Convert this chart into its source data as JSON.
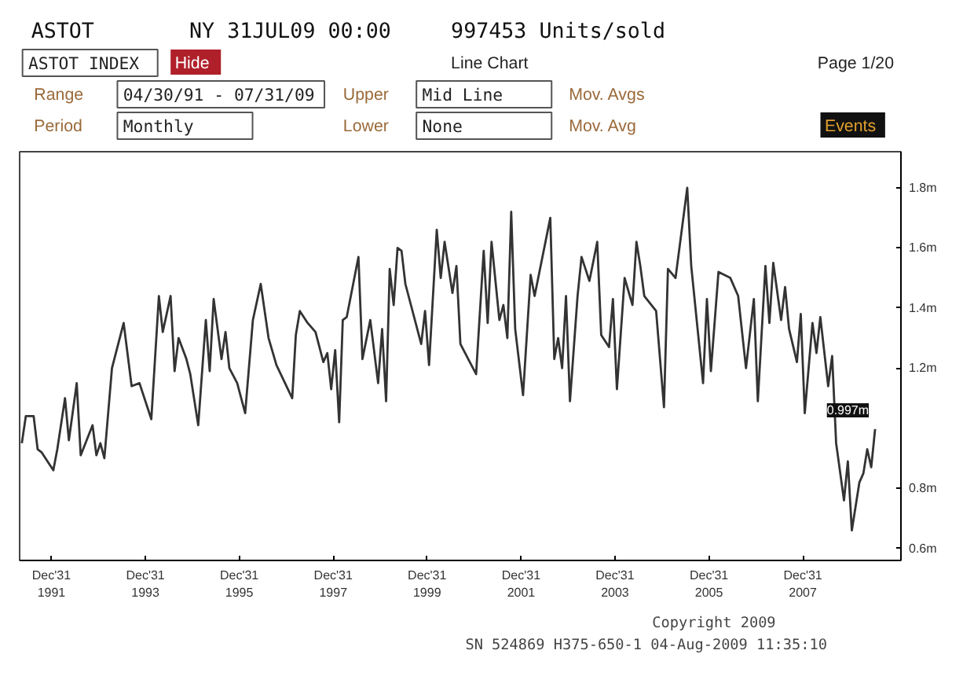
{
  "chart_data": {
    "type": "line",
    "x": [
      "1991-05",
      "1991-06",
      "1991-08",
      "1991-09",
      "1991-10",
      "1992-01",
      "1992-02",
      "1992-04",
      "1992-05",
      "1992-07",
      "1992-08",
      "1992-11",
      "1992-12",
      "1993-01",
      "1993-02",
      "1993-04",
      "1993-07",
      "1993-09",
      "1993-11",
      "1994-02",
      "1994-04",
      "1994-05",
      "1994-07",
      "1994-08",
      "1994-09",
      "1994-11",
      "1994-12",
      "1995-02",
      "1995-04",
      "1995-05",
      "1995-06",
      "1995-08",
      "1995-09",
      "1995-10",
      "1995-12",
      "1996-02",
      "1996-04",
      "1996-06",
      "1996-08",
      "1996-10",
      "1997-02",
      "1997-03",
      "1997-04",
      "1997-06",
      "1997-08",
      "1997-10",
      "1997-11",
      "1997-12",
      "1998-01",
      "1998-02",
      "1998-03",
      "1998-04",
      "1998-07",
      "1998-08",
      "1998-10",
      "1998-12",
      "1999-01",
      "1999-02",
      "1999-03",
      "1999-04",
      "1999-05",
      "1999-06",
      "1999-07",
      "1999-11",
      "1999-12",
      "2000-01",
      "2000-03",
      "2000-04",
      "2000-05",
      "2000-07",
      "2000-08",
      "2000-09",
      "2000-11",
      "2001-01",
      "2001-03",
      "2001-04",
      "2001-05",
      "2001-07",
      "2001-08",
      "2001-09",
      "2001-10",
      "2001-11",
      "2002-01",
      "2002-03",
      "2002-04",
      "2002-08",
      "2002-09",
      "2002-10",
      "2002-11",
      "2002-12",
      "2003-01",
      "2003-03",
      "2003-04",
      "2003-06",
      "2003-08",
      "2003-09",
      "2003-11",
      "2003-12",
      "2004-01",
      "2004-03",
      "2004-05",
      "2004-06",
      "2004-07",
      "2004-08",
      "2004-11",
      "2005-01",
      "2005-02",
      "2005-04",
      "2005-07",
      "2005-08",
      "2005-11",
      "2005-12",
      "2006-01",
      "2006-03",
      "2006-06",
      "2006-08",
      "2006-10",
      "2006-12",
      "2007-01",
      "2007-03",
      "2007-04",
      "2007-05",
      "2007-07",
      "2007-08",
      "2007-09",
      "2007-11",
      "2007-12",
      "2008-01",
      "2008-03",
      "2008-04",
      "2008-05",
      "2008-07",
      "2008-08",
      "2008-09",
      "2008-11",
      "2008-12",
      "2009-01",
      "2009-03",
      "2009-04",
      "2009-05",
      "2009-06",
      "2009-07"
    ],
    "series": [
      {
        "color": "#333333",
        "values": [
          0.95,
          1.04,
          1.04,
          0.93,
          0.92,
          0.86,
          0.93,
          1.1,
          0.96,
          1.15,
          0.91,
          1.01,
          0.91,
          0.95,
          0.9,
          1.2,
          1.35,
          1.14,
          1.15,
          1.03,
          1.44,
          1.32,
          1.44,
          1.19,
          1.3,
          1.23,
          1.18,
          1.01,
          1.36,
          1.19,
          1.43,
          1.23,
          1.32,
          1.2,
          1.15,
          1.05,
          1.36,
          1.48,
          1.3,
          1.21,
          1.1,
          1.31,
          1.39,
          1.35,
          1.32,
          1.22,
          1.25,
          1.13,
          1.26,
          1.02,
          1.36,
          1.37,
          1.57,
          1.23,
          1.36,
          1.15,
          1.33,
          1.09,
          1.53,
          1.41,
          1.6,
          1.59,
          1.48,
          1.28,
          1.39,
          1.21,
          1.66,
          1.5,
          1.62,
          1.45,
          1.54,
          1.28,
          1.23,
          1.18,
          1.59,
          1.35,
          1.62,
          1.36,
          1.41,
          1.3,
          1.72,
          1.33,
          1.11,
          1.51,
          1.44,
          1.7,
          1.23,
          1.3,
          1.2,
          1.44,
          1.09,
          1.44,
          1.57,
          1.49,
          1.62,
          1.31,
          1.27,
          1.43,
          1.13,
          1.5,
          1.41,
          1.62,
          1.54,
          1.44,
          1.39,
          1.07,
          1.53,
          1.5,
          1.8,
          1.54,
          1.15,
          1.43,
          1.19,
          1.52,
          1.5,
          1.44,
          1.2,
          1.43,
          1.09,
          1.54,
          1.35,
          1.55,
          1.36,
          1.47,
          1.33,
          1.22,
          1.38,
          1.05,
          1.35,
          1.25,
          1.37,
          1.14,
          1.24,
          0.95,
          0.76,
          0.89,
          0.66,
          0.82,
          0.85,
          0.93,
          0.87,
          0.997
        ]
      }
    ],
    "xlim": [
      "1991-04-28",
      "2010-02-01"
    ],
    "ylim": [
      0.56,
      1.92
    ],
    "yticks": [
      {
        "value": 0.6,
        "label": "0.6m"
      },
      {
        "value": 0.8,
        "label": "0.8m"
      },
      {
        "value": 1.2,
        "label": "1.2m"
      },
      {
        "value": 1.4,
        "label": "1.4m"
      },
      {
        "value": 1.6,
        "label": "1.6m"
      },
      {
        "value": 1.8,
        "label": "1.8m"
      }
    ],
    "xticks": [
      {
        "value": "1991-12-31",
        "label": "Dec'31\n1991"
      },
      {
        "value": "1993-12-31",
        "label": "Dec'31\n1993"
      },
      {
        "value": "1995-12-31",
        "label": "Dec'31\n1995"
      },
      {
        "value": "1997-12-31",
        "label": "Dec'31\n1997"
      },
      {
        "value": "1999-12-31",
        "label": "Dec'31\n1999"
      },
      {
        "value": "2001-12-31",
        "label": "Dec'31\n2001"
      },
      {
        "value": "2003-12-31",
        "label": "Dec'31\n2003"
      },
      {
        "value": "2005-12-31",
        "label": "Dec'31\n2005"
      },
      {
        "value": "2007-12-31",
        "label": "Dec'31\n2007"
      }
    ],
    "grid": false,
    "line_style": "solid",
    "annotations": [
      "ASTOT",
      "NY 31JUL09 00:00",
      "997453 Units/sold",
      "ASTOT INDEX",
      "Hide",
      "Line Chart",
      "Page 1/20",
      "Range",
      "04/30/91 - 07/31/09",
      "Upper",
      "Mid Line",
      "Mov. Avgs",
      "Period",
      "Monthly",
      "Lower",
      "None",
      "Mov. Avg",
      "Events",
      {
        "text": "0.997m",
        "x": "2009-07",
        "y": 0.997
      },
      "Copyright 2009",
      "SN 524869 H375-650-1 04-Aug-2009 11:35:10"
    ]
  }
}
